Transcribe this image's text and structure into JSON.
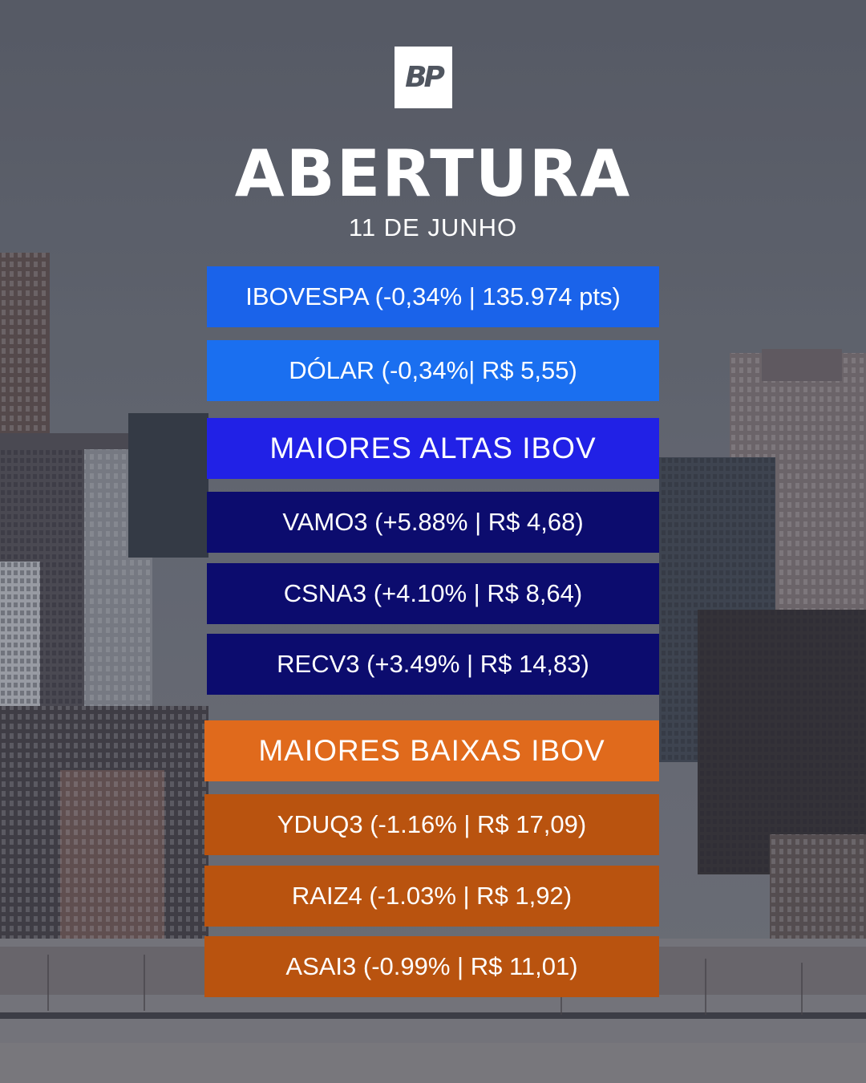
{
  "logo": {
    "text": "BP"
  },
  "title": "ABERTURA",
  "date": "11 DE JUNHO",
  "market": [
    {
      "label": "IBOVESPA (-0,34% | 135.974 pts)"
    },
    {
      "label": "DÓLAR (-0,34%| R$ 5,55)"
    }
  ],
  "gainers": {
    "header": "MAIORES ALTAS IBOV",
    "items": [
      {
        "label": "VAMO3 (+5.88% | R$ 4,68)"
      },
      {
        "label": "CSNA3 (+4.10% | R$ 8,64)"
      },
      {
        "label": "RECV3 (+3.49% | R$ 14,83)"
      }
    ]
  },
  "losers": {
    "header": "MAIORES BAIXAS IBOV",
    "items": [
      {
        "label": "YDUQ3 (-1.16% | R$ 17,09)"
      },
      {
        "label": "RAIZ4 (-1.03% | R$ 1,92)"
      },
      {
        "label": "ASAI3 (-0.99% | R$ 11,01)"
      }
    ]
  },
  "colors": {
    "market_bar": "#1a63ea",
    "gainers_header": "#2121e6",
    "gainers_item": "#0c0c6e",
    "losers_header": "#e06a1c",
    "losers_item": "#b9530f"
  }
}
